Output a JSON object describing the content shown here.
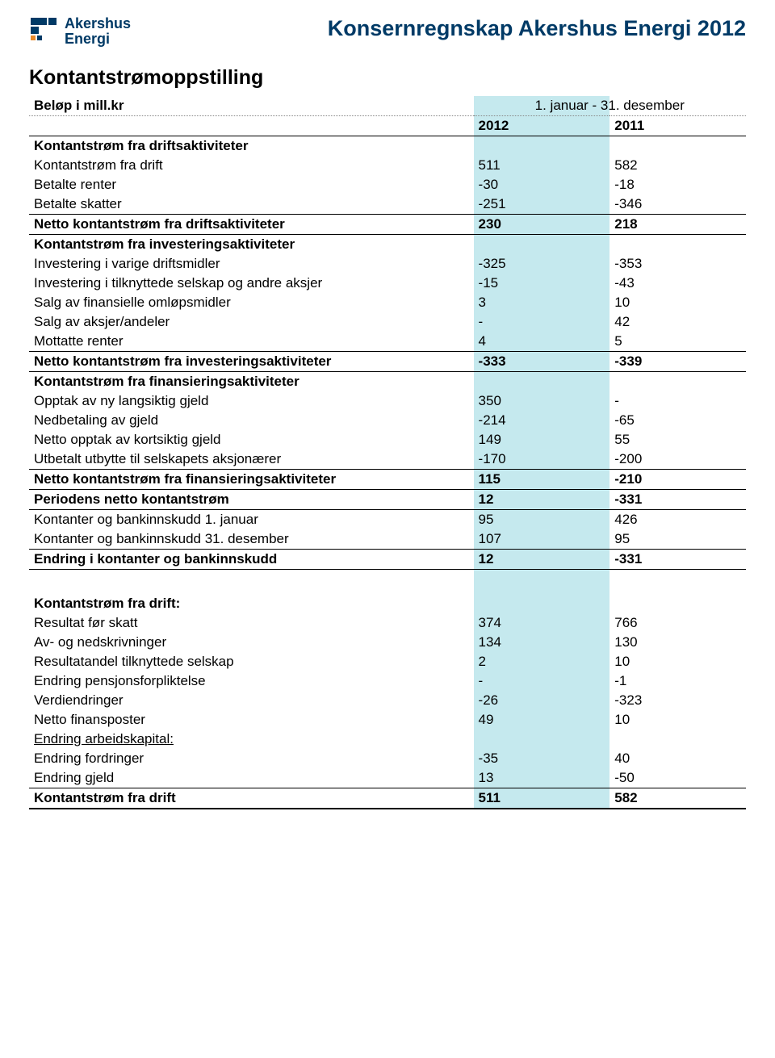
{
  "colors": {
    "brand_text": "#003a66",
    "highlight_bg": "#c5e9ee",
    "text": "#000000",
    "border": "#000000",
    "dotted_border": "#888888",
    "logo_orange": "#e98a2b",
    "logo_blue": "#003a66"
  },
  "typography": {
    "base_font": "Verdana",
    "doc_title_size": 27,
    "section_title_size": 25,
    "body_size": 17
  },
  "header": {
    "logo_line1": "Akershus",
    "logo_line2": "Energi",
    "doc_title": "Konsernregnskap Akershus Energi 2012"
  },
  "statement": {
    "title": "Kontantstrømoppstilling",
    "caption": "Beløp i mill.kr",
    "period_label": "1. januar - 31. desember",
    "year_columns": [
      "2012",
      "2011"
    ],
    "sections": [
      {
        "heading": "Kontantstrøm fra driftsaktiviteter",
        "rows": [
          {
            "label": "Kontantstrøm fra drift",
            "v2012": "511",
            "v2011": "582"
          },
          {
            "label": "Betalte renter",
            "v2012": "-30",
            "v2011": "-18"
          },
          {
            "label": "Betalte skatter",
            "v2012": "-251",
            "v2011": "-346"
          }
        ],
        "subtotal": {
          "label": "Netto kontantstrøm fra driftsaktiviteter",
          "v2012": "230",
          "v2011": "218"
        }
      },
      {
        "heading": "Kontantstrøm fra investeringsaktiviteter",
        "rows": [
          {
            "label": "Investering i varige driftsmidler",
            "v2012": "-325",
            "v2011": "-353"
          },
          {
            "label": "Investering i tilknyttede selskap og andre aksjer",
            "v2012": "-15",
            "v2011": "-43"
          },
          {
            "label": "Salg av finansielle omløpsmidler",
            "v2012": "3",
            "v2011": "10"
          },
          {
            "label": "Salg av aksjer/andeler",
            "v2012": "-",
            "v2011": "42"
          },
          {
            "label": "Mottatte renter",
            "v2012": "4",
            "v2011": "5"
          }
        ],
        "subtotal": {
          "label": "Netto kontantstrøm fra investeringsaktiviteter",
          "v2012": "-333",
          "v2011": "-339"
        }
      },
      {
        "heading": "Kontantstrøm fra finansieringsaktiviteter",
        "rows": [
          {
            "label": "Opptak av ny langsiktig gjeld",
            "v2012": "350",
            "v2011": "-"
          },
          {
            "label": "Nedbetaling av gjeld",
            "v2012": "-214",
            "v2011": "-65"
          },
          {
            "label": "Netto opptak av kortsiktig gjeld",
            "v2012": "149",
            "v2011": "55"
          },
          {
            "label": "Utbetalt utbytte til selskapets aksjonærer",
            "v2012": "-170",
            "v2011": "-200"
          }
        ],
        "subtotal": {
          "label": "Netto kontantstrøm fra finansieringsaktiviteter",
          "v2012": "115",
          "v2011": "-210"
        }
      }
    ],
    "period_total": {
      "label": "Periodens netto kontantstrøm",
      "v2012": "12",
      "v2011": "-331"
    },
    "cash_rows": [
      {
        "label": "Kontanter og bankinnskudd 1. januar",
        "v2012": "95",
        "v2011": "426"
      },
      {
        "label": "Kontanter og bankinnskudd 31. desember",
        "v2012": "107",
        "v2011": "95"
      }
    ],
    "cash_change": {
      "label": "Endring i kontanter og bankinnskudd",
      "v2012": "12",
      "v2011": "-331"
    },
    "recon": {
      "heading": "Kontantstrøm fra drift:",
      "rows": [
        {
          "label": "Resultat før skatt",
          "v2012": "374",
          "v2011": "766"
        },
        {
          "label": "Av- og nedskrivninger",
          "v2012": "134",
          "v2011": "130"
        },
        {
          "label": "Resultatandel tilknyttede selskap",
          "v2012": "2",
          "v2011": "10"
        },
        {
          "label": "Endring pensjonsforpliktelse",
          "v2012": "-",
          "v2011": "-1"
        },
        {
          "label": "Verdiendringer",
          "v2012": "-26",
          "v2011": "-323"
        },
        {
          "label": "Netto finansposter",
          "v2012": "49",
          "v2011": "10"
        }
      ],
      "wc_heading": "Endring arbeidskapital:",
      "wc_rows": [
        {
          "label": "Endring fordringer",
          "v2012": "-35",
          "v2011": "40"
        },
        {
          "label": "Endring gjeld",
          "v2012": "13",
          "v2011": "-50"
        }
      ],
      "total": {
        "label": "Kontantstrøm fra drift",
        "v2012": "511",
        "v2011": "582"
      }
    }
  }
}
